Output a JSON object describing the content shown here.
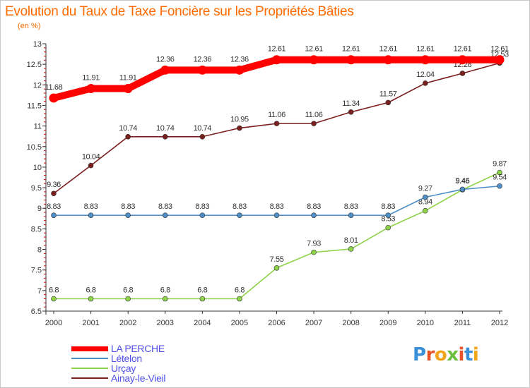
{
  "chart_data": {
    "type": "line",
    "title": "Evolution du Taux de Taxe Foncière sur les Propriétés Bâties",
    "subtitle": "(en %)",
    "x": [
      "2000",
      "2001",
      "2002",
      "2003",
      "2004",
      "2005",
      "2006",
      "2007",
      "2008",
      "2009",
      "2010",
      "2011",
      "2012"
    ],
    "ylim": [
      6.5,
      13
    ],
    "yticks": [
      "6.5",
      "7",
      "7.5",
      "8",
      "8.5",
      "9",
      "9.5",
      "10",
      "10.5",
      "11",
      "11.5",
      "12",
      "12.5",
      "13"
    ],
    "series": [
      {
        "name": "LA PERCHE",
        "color": "#ff0000",
        "values": [
          11.68,
          11.91,
          11.91,
          12.36,
          12.36,
          12.36,
          12.61,
          12.61,
          12.61,
          12.61,
          12.61,
          12.61,
          12.61
        ],
        "labels": [
          "11.68",
          "11.91",
          "11.91",
          "12.36",
          "12.36",
          "12.36",
          "12.61",
          "12.61",
          "12.61",
          "12.61",
          "12.61",
          "12.61",
          "12.61"
        ]
      },
      {
        "name": "Lételon",
        "color": "#4f8fc8",
        "values": [
          8.83,
          8.83,
          8.83,
          8.83,
          8.83,
          8.83,
          8.83,
          8.83,
          8.83,
          8.83,
          9.27,
          9.46,
          9.54
        ],
        "labels": [
          "8.83",
          "8.83",
          "8.83",
          "8.83",
          "8.83",
          "8.83",
          "8.83",
          "8.83",
          "8.83",
          "8.83",
          "9.27",
          "9.46",
          "9.54"
        ]
      },
      {
        "name": "Urçay",
        "color": "#8fd34a",
        "values": [
          6.8,
          6.8,
          6.8,
          6.8,
          6.8,
          6.8,
          7.55,
          7.93,
          8.01,
          8.53,
          8.94,
          9.45,
          9.87
        ],
        "labels": [
          "6.8",
          "6.8",
          "6.8",
          "6.8",
          "6.8",
          "6.8",
          "7.55",
          "7.93",
          "8.01",
          "8.53",
          "8.94",
          "9.45",
          "9.87"
        ]
      },
      {
        "name": "Ainay-le-Vieil",
        "color": "#7a1e1e",
        "values": [
          9.36,
          10.04,
          10.74,
          10.74,
          10.74,
          10.95,
          11.06,
          11.06,
          11.34,
          11.57,
          12.04,
          12.28,
          12.53
        ],
        "labels": [
          "9.36",
          "10.04",
          "10.74",
          "10.74",
          "10.74",
          "10.95",
          "11.06",
          "11.06",
          "11.34",
          "11.57",
          "12.04",
          "12.28",
          "12.53"
        ]
      }
    ]
  },
  "legend": {
    "items": [
      {
        "label": "LA PERCHE",
        "color": "#ff0000"
      },
      {
        "label": "Lételon",
        "color": "#4f8fc8"
      },
      {
        "label": "Urçay",
        "color": "#8fd34a"
      },
      {
        "label": "Ainay-le-Vieil",
        "color": "#7a1e1e"
      }
    ]
  },
  "brand": {
    "name": "Proxiti",
    "letters": [
      {
        "ch": "P",
        "color": "#3a8fd6"
      },
      {
        "ch": "r",
        "color": "#e8522a"
      },
      {
        "ch": "o",
        "color": "#f2a51a"
      },
      {
        "ch": "x",
        "color": "#6cbf3d"
      },
      {
        "ch": "i",
        "color": "#e8522a"
      },
      {
        "ch": "t",
        "color": "#3a8fd6"
      },
      {
        "ch": "i",
        "color": "#f2a51a"
      }
    ]
  }
}
